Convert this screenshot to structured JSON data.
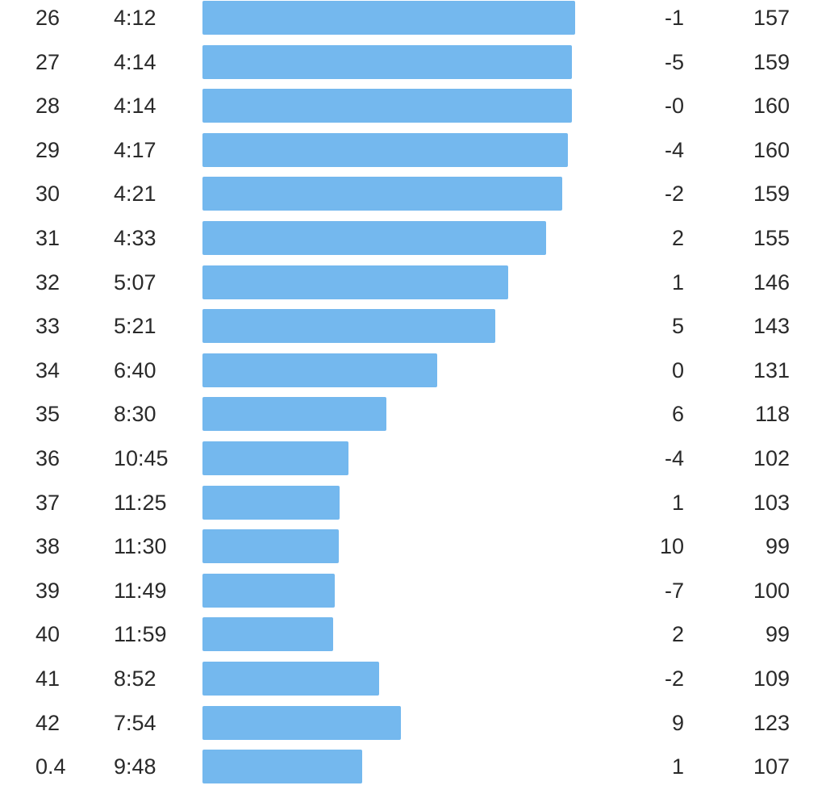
{
  "splits": {
    "bar_color": "#74b8ee",
    "bar_scale": {
      "fastest_pace": "4:12",
      "fastest_seconds": 252,
      "max_bar_fraction": 1.0
    },
    "rows": [
      {
        "km": "26",
        "pace": "4:12",
        "pace_seconds": 252,
        "elevation": "-1",
        "heart_rate": "157"
      },
      {
        "km": "27",
        "pace": "4:14",
        "pace_seconds": 254,
        "elevation": "-5",
        "heart_rate": "159"
      },
      {
        "km": "28",
        "pace": "4:14",
        "pace_seconds": 254,
        "elevation": "-0",
        "heart_rate": "160"
      },
      {
        "km": "29",
        "pace": "4:17",
        "pace_seconds": 257,
        "elevation": "-4",
        "heart_rate": "160"
      },
      {
        "km": "30",
        "pace": "4:21",
        "pace_seconds": 261,
        "elevation": "-2",
        "heart_rate": "159"
      },
      {
        "km": "31",
        "pace": "4:33",
        "pace_seconds": 273,
        "elevation": "2",
        "heart_rate": "155"
      },
      {
        "km": "32",
        "pace": "5:07",
        "pace_seconds": 307,
        "elevation": "1",
        "heart_rate": "146"
      },
      {
        "km": "33",
        "pace": "5:21",
        "pace_seconds": 321,
        "elevation": "5",
        "heart_rate": "143"
      },
      {
        "km": "34",
        "pace": "6:40",
        "pace_seconds": 400,
        "elevation": "0",
        "heart_rate": "131"
      },
      {
        "km": "35",
        "pace": "8:30",
        "pace_seconds": 510,
        "elevation": "6",
        "heart_rate": "118"
      },
      {
        "km": "36",
        "pace": "10:45",
        "pace_seconds": 645,
        "elevation": "-4",
        "heart_rate": "102"
      },
      {
        "km": "37",
        "pace": "11:25",
        "pace_seconds": 685,
        "elevation": "1",
        "heart_rate": "103"
      },
      {
        "km": "38",
        "pace": "11:30",
        "pace_seconds": 690,
        "elevation": "10",
        "heart_rate": "99"
      },
      {
        "km": "39",
        "pace": "11:49",
        "pace_seconds": 709,
        "elevation": "-7",
        "heart_rate": "100"
      },
      {
        "km": "40",
        "pace": "11:59",
        "pace_seconds": 719,
        "elevation": "2",
        "heart_rate": "99"
      },
      {
        "km": "41",
        "pace": "8:52",
        "pace_seconds": 532,
        "elevation": "-2",
        "heart_rate": "109"
      },
      {
        "km": "42",
        "pace": "7:54",
        "pace_seconds": 474,
        "elevation": "9",
        "heart_rate": "123"
      },
      {
        "km": "0.4",
        "pace": "9:48",
        "pace_seconds": 588,
        "elevation": "1",
        "heart_rate": "107"
      }
    ]
  }
}
